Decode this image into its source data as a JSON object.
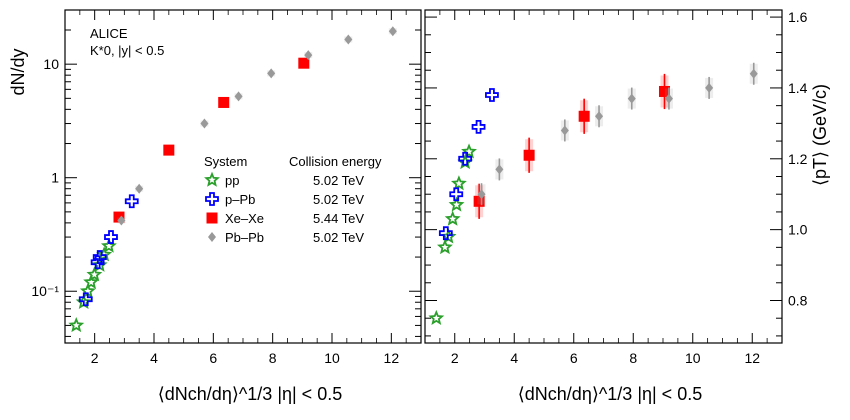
{
  "chart_data": [
    {
      "type": "scatter",
      "panel": "left",
      "annotation": [
        "ALICE",
        "K*0, |y| < 0.5"
      ],
      "ylabel": "dN/dy",
      "xlabel": "⟨dNch/dη⟩^1/3 |η| < 0.5",
      "yscale": "log",
      "ylim": [
        0.035,
        30
      ],
      "xlim": [
        1.0,
        13.0
      ],
      "xticks": [
        2,
        4,
        6,
        8,
        10,
        12
      ],
      "yticks": [
        {
          "value": 0.1,
          "label": "10⁻¹"
        },
        {
          "value": 1,
          "label": "1"
        },
        {
          "value": 10,
          "label": "10"
        }
      ],
      "legend": {
        "placement": "middle",
        "headers": [
          "System",
          "Collision energy"
        ],
        "entries": [
          {
            "name": "pp",
            "energy": "5.02 TeV"
          },
          {
            "name": "p–Pb",
            "energy": "5.02 TeV"
          },
          {
            "name": "Xe–Xe",
            "energy": "5.44 TeV"
          },
          {
            "name": "Pb–Pb",
            "energy": "5.02 TeV"
          }
        ]
      },
      "series": [
        {
          "name": "pp",
          "color": "#2ca02c",
          "x": [
            1.38,
            1.63,
            1.77,
            1.88,
            1.99,
            2.17,
            2.32,
            2.48
          ],
          "y": [
            0.05,
            0.08,
            0.1,
            0.12,
            0.14,
            0.17,
            0.21,
            0.25
          ]
        },
        {
          "name": "p–Pb",
          "color": "#0000ff",
          "x": [
            1.7,
            2.1,
            2.17,
            2.55,
            3.25
          ],
          "y": [
            0.085,
            0.18,
            0.2,
            0.3,
            0.62
          ]
        },
        {
          "name": "Xe–Xe",
          "color": "#ff0000",
          "x": [
            2.82,
            4.5,
            6.35,
            9.05
          ],
          "y": [
            0.45,
            1.75,
            4.6,
            10.2
          ]
        },
        {
          "name": "Pb–Pb",
          "color": "#999999",
          "x": [
            2.9,
            3.5,
            5.7,
            6.85,
            7.95,
            9.2,
            10.55,
            12.05
          ],
          "y": [
            0.42,
            0.8,
            3.0,
            5.2,
            8.3,
            12.0,
            16.5,
            19.5
          ]
        }
      ]
    },
    {
      "type": "scatter",
      "panel": "right",
      "ylabel": "⟨pT⟩ (GeV/c)",
      "xlabel": "⟨dNch/dη⟩^1/3 |η| < 0.5",
      "ylim": [
        0.68,
        1.62
      ],
      "xlim": [
        1.0,
        13.0
      ],
      "xticks": [
        2,
        4,
        6,
        8,
        10,
        12
      ],
      "yticks": [
        0.8,
        1.0,
        1.2,
        1.4,
        1.6
      ],
      "series": [
        {
          "name": "pp",
          "x": [
            1.38,
            1.67,
            1.79,
            1.93,
            2.06,
            2.14,
            2.35,
            2.48
          ],
          "y": [
            0.75,
            0.95,
            0.98,
            1.03,
            1.07,
            1.13,
            1.19,
            1.22
          ]
        },
        {
          "name": "p–Pb",
          "x": [
            1.7,
            2.05,
            2.35,
            2.8,
            3.25
          ],
          "y": [
            0.99,
            1.1,
            1.2,
            1.29,
            1.38
          ]
        },
        {
          "name": "Xe–Xe",
          "x": [
            2.82,
            4.5,
            6.35,
            9.05
          ],
          "y": [
            1.08,
            1.21,
            1.32,
            1.39
          ]
        },
        {
          "name": "Pb–Pb",
          "x": [
            2.9,
            3.5,
            5.7,
            6.85,
            7.95,
            9.2,
            10.55,
            12.05
          ],
          "y": [
            1.1,
            1.17,
            1.28,
            1.32,
            1.37,
            1.37,
            1.4,
            1.44
          ]
        }
      ]
    }
  ]
}
